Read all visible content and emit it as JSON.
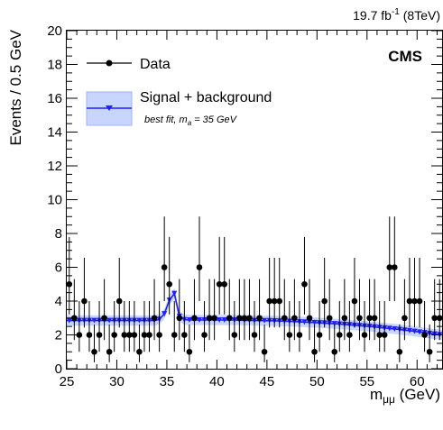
{
  "chart_data": {
    "type": "scatter",
    "title": "",
    "luminosity_label": "19.7 fb",
    "luminosity_sup": "-1",
    "luminosity_energy": " (8TeV)",
    "experiment_label": "CMS",
    "xlabel_main": "m",
    "xlabel_sub": "μμ",
    "xlabel_unit": " (GeV)",
    "ylabel": "Events / 0.5 GeV",
    "xlim": [
      25,
      62.5
    ],
    "ylim": [
      0,
      20
    ],
    "x_ticks": [
      25,
      30,
      35,
      40,
      45,
      50,
      55,
      60
    ],
    "y_ticks": [
      0,
      2,
      4,
      6,
      8,
      10,
      12,
      14,
      16,
      18,
      20
    ],
    "legend_position": "top-left",
    "colors": {
      "data": "#000000",
      "fit": "#1f1fff",
      "band": "#9bb4ff"
    },
    "series": [
      {
        "name": "Data",
        "x": [
          25.25,
          25.75,
          26.25,
          26.75,
          27.25,
          27.75,
          28.25,
          28.75,
          29.25,
          29.75,
          30.25,
          30.75,
          31.25,
          31.75,
          32.25,
          32.75,
          33.25,
          33.75,
          34.25,
          34.75,
          35.25,
          35.75,
          36.25,
          36.75,
          37.25,
          37.75,
          38.25,
          38.75,
          39.25,
          39.75,
          40.25,
          40.75,
          41.25,
          41.75,
          42.25,
          42.75,
          43.25,
          43.75,
          44.25,
          44.75,
          45.25,
          45.75,
          46.25,
          46.75,
          47.25,
          47.75,
          48.25,
          48.75,
          49.25,
          49.75,
          50.25,
          50.75,
          51.25,
          51.75,
          52.25,
          52.75,
          53.25,
          53.75,
          54.25,
          54.75,
          55.25,
          55.75,
          56.25,
          56.75,
          57.25,
          57.75,
          58.25,
          58.75,
          59.25,
          59.75,
          60.25,
          60.75,
          61.25,
          61.75,
          62.25
        ],
        "y": [
          5,
          3,
          2,
          4,
          2,
          1,
          2,
          3,
          1,
          2,
          4,
          2,
          2,
          2,
          1,
          2,
          2,
          3,
          2,
          6,
          5,
          2,
          3,
          2,
          1,
          3,
          6,
          2,
          3,
          3,
          5,
          5,
          3,
          2,
          3,
          3,
          3,
          2,
          3,
          1,
          4,
          4,
          4,
          3,
          2,
          3,
          2,
          5,
          3,
          1,
          2,
          4,
          3,
          1,
          2,
          3,
          2,
          4,
          3,
          2,
          3,
          3,
          2,
          2,
          6,
          6,
          1,
          3,
          4,
          4,
          4,
          2,
          1,
          3,
          3
        ]
      },
      {
        "name": "Signal + background",
        "legend_note_prefix": "best fit, m",
        "legend_note_sub": "a",
        "legend_note_suffix": " = 35 GeV",
        "x": [
          25.25,
          25.75,
          26.25,
          26.75,
          27.25,
          27.75,
          28.25,
          28.75,
          29.25,
          29.75,
          30.25,
          30.75,
          31.25,
          31.75,
          32.25,
          32.75,
          33.25,
          33.75,
          34.25,
          34.75,
          35.25,
          35.75,
          36.25,
          36.75,
          37.25,
          37.75,
          38.25,
          38.75,
          39.25,
          39.75,
          40.25,
          40.75,
          41.25,
          41.75,
          42.25,
          42.75,
          43.25,
          43.75,
          44.25,
          44.75,
          45.25,
          45.75,
          46.25,
          46.75,
          47.25,
          47.75,
          48.25,
          48.75,
          49.25,
          49.75,
          50.25,
          50.75,
          51.25,
          51.75,
          52.25,
          52.75,
          53.25,
          53.75,
          54.25,
          54.75,
          55.25,
          55.75,
          56.25,
          56.75,
          57.25,
          57.75,
          58.25,
          58.75,
          59.25,
          59.75,
          60.25,
          60.75,
          61.25,
          61.75,
          62.25
        ],
        "y": [
          2.85,
          2.85,
          2.85,
          2.85,
          2.85,
          2.85,
          2.85,
          2.85,
          2.85,
          2.85,
          2.85,
          2.85,
          2.85,
          2.85,
          2.85,
          2.85,
          2.85,
          2.85,
          2.92,
          3.25,
          4.05,
          4.45,
          3.1,
          2.9,
          2.88,
          2.88,
          2.88,
          2.88,
          2.88,
          2.88,
          2.88,
          2.88,
          2.88,
          2.88,
          2.87,
          2.86,
          2.86,
          2.85,
          2.85,
          2.84,
          2.84,
          2.83,
          2.82,
          2.81,
          2.8,
          2.79,
          2.77,
          2.76,
          2.74,
          2.73,
          2.71,
          2.7,
          2.68,
          2.66,
          2.64,
          2.62,
          2.6,
          2.57,
          2.55,
          2.52,
          2.5,
          2.47,
          2.44,
          2.41,
          2.38,
          2.35,
          2.32,
          2.28,
          2.25,
          2.21,
          2.17,
          2.13,
          2.09,
          2.05,
          2.01
        ],
        "band_halfwidth": 0.3
      }
    ]
  }
}
